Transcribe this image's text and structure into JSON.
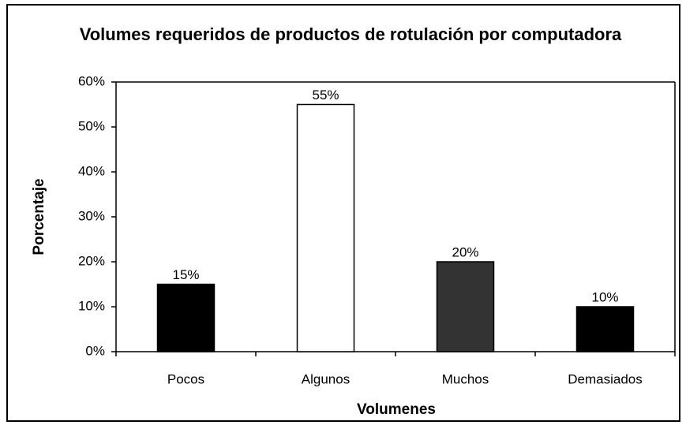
{
  "chart_data": {
    "type": "bar",
    "title": "Volumes requeridos de productos de rotulación por computadora",
    "x_label": "Volumenes",
    "y_label": "Porcentaje",
    "categories": [
      "Pocos",
      "Algunos",
      "Muchos",
      "Demasiados"
    ],
    "values": [
      15,
      55,
      20,
      10
    ],
    "value_labels": [
      "15%",
      "55%",
      "20%",
      "10%"
    ],
    "colors": [
      "#000000",
      "#ffffff",
      "#333333",
      "#000000"
    ],
    "ylim": [
      0,
      60
    ],
    "yticks": [
      {
        "value": 0,
        "label": "0%"
      },
      {
        "value": 10,
        "label": "10%"
      },
      {
        "value": 20,
        "label": "20%"
      },
      {
        "value": 30,
        "label": "30%"
      },
      {
        "value": 40,
        "label": "40%"
      },
      {
        "value": 50,
        "label": "50%"
      },
      {
        "value": 60,
        "label": "60%"
      }
    ],
    "grid": false
  }
}
